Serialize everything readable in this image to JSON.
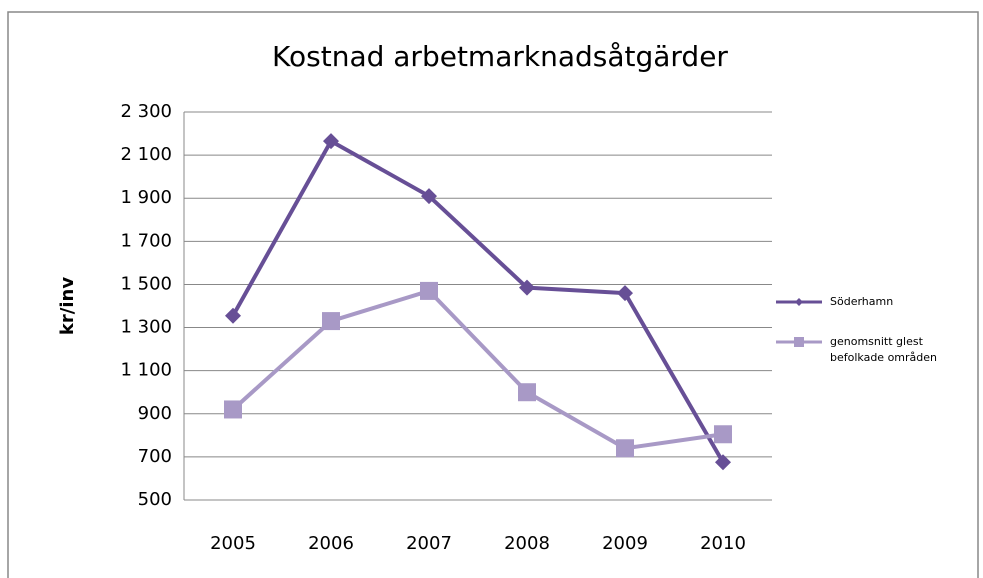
{
  "chart_data": {
    "type": "line",
    "title": "Kostnad arbetmarknadsåtgärder",
    "ylabel": "kr/inv",
    "categories": [
      "2005",
      "2006",
      "2007",
      "2008",
      "2009",
      "2010"
    ],
    "series": [
      {
        "name": "Söderhamn",
        "color": "#674f96",
        "marker": "diamond",
        "values": [
          1355,
          2165,
          1910,
          1485,
          1460,
          675
        ]
      },
      {
        "name": "genomsnitt glest befolkade områden",
        "color": "#a899c6",
        "marker": "square",
        "values": [
          920,
          1330,
          1470,
          1000,
          740,
          805
        ]
      }
    ],
    "ylim": [
      500,
      2300
    ],
    "yticks": [
      500,
      700,
      900,
      {
        "value": 1100,
        "label": "1 100"
      },
      {
        "value": 1300,
        "label": "1 300"
      },
      {
        "value": 1500,
        "label": "1 500"
      },
      {
        "value": 1700,
        "label": "1 700"
      },
      {
        "value": 1900,
        "label": "1 900"
      },
      {
        "value": 2100,
        "label": "2 100"
      },
      {
        "value": 2300,
        "label": "2 300"
      }
    ],
    "grid": true,
    "legend": "right"
  }
}
